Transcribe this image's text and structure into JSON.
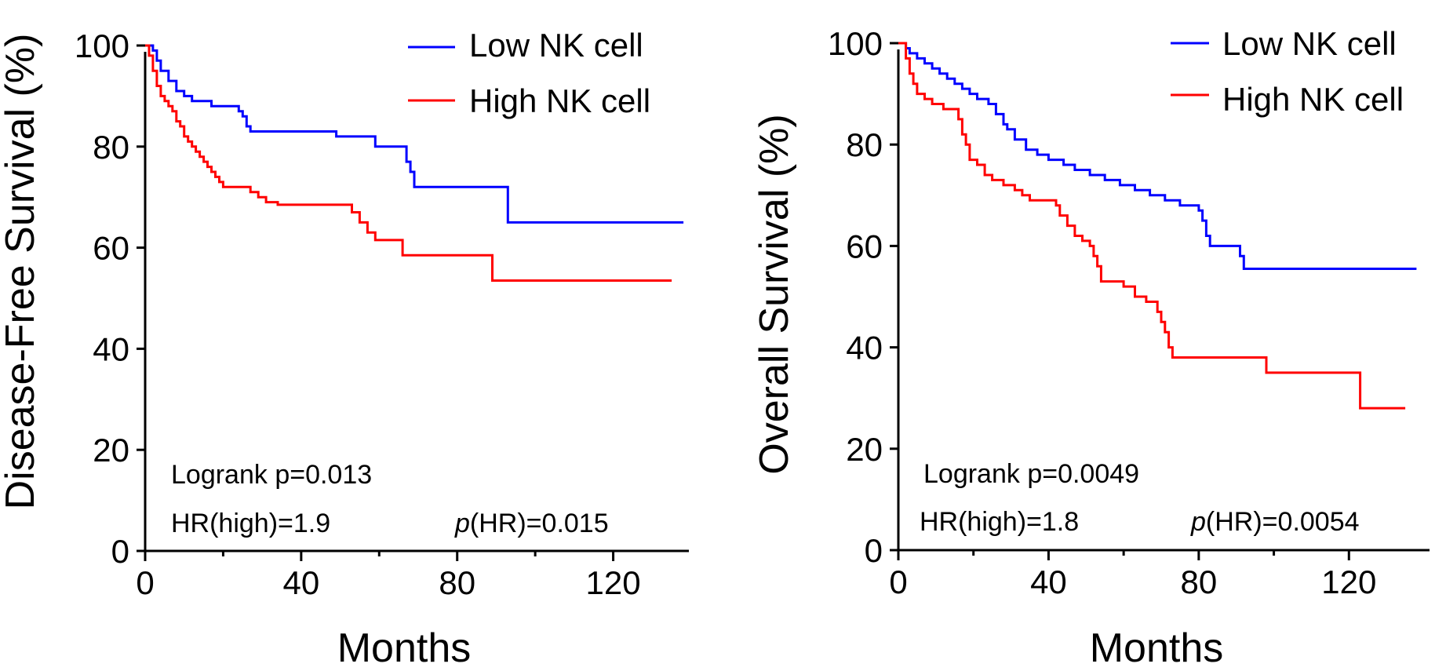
{
  "colors": {
    "low": "#0000ff",
    "high": "#ff0000",
    "axis": "#000000"
  },
  "chart_data": [
    {
      "type": "line",
      "subtype": "kaplan-meier",
      "id": "dfs",
      "xlabel": "Months",
      "ylabel": "Disease-Free Survival (%)",
      "xlim": [
        0,
        140
      ],
      "ylim": [
        0,
        100
      ],
      "xticks": [
        0,
        40,
        80,
        120
      ],
      "xticks_minor": [
        20,
        60,
        100
      ],
      "yticks": [
        0,
        20,
        40,
        60,
        80,
        100
      ],
      "legend": [
        "Low NK cell",
        "High NK cell"
      ],
      "stats": {
        "logrank": "Logrank p=0.013",
        "hr": "HR(high)=1.9",
        "p_hr_italic": "p",
        "p_hr_value": "(HR)=0.015"
      },
      "series": [
        {
          "name": "Low NK cell",
          "color": "#0000ff",
          "points": [
            [
              0,
              100
            ],
            [
              2,
              99
            ],
            [
              3,
              97
            ],
            [
              4,
              95
            ],
            [
              6,
              93
            ],
            [
              8,
              91
            ],
            [
              10,
              90
            ],
            [
              12,
              89
            ],
            [
              17,
              88
            ],
            [
              24,
              87
            ],
            [
              25,
              86
            ],
            [
              26,
              84
            ],
            [
              27,
              83
            ],
            [
              45,
              83
            ],
            [
              49,
              82
            ],
            [
              57,
              82
            ],
            [
              59,
              80
            ],
            [
              66,
              80
            ],
            [
              67,
              77
            ],
            [
              68,
              75
            ],
            [
              69,
              72
            ],
            [
              92,
              72
            ],
            [
              93,
              65
            ],
            [
              138,
              65
            ]
          ]
        },
        {
          "name": "High NK cell",
          "color": "#ff0000",
          "points": [
            [
              0,
              100
            ],
            [
              1,
              98
            ],
            [
              2,
              95
            ],
            [
              3,
              92
            ],
            [
              4,
              90
            ],
            [
              5,
              89
            ],
            [
              6,
              88
            ],
            [
              7,
              87
            ],
            [
              8,
              85
            ],
            [
              9,
              84
            ],
            [
              10,
              82
            ],
            [
              11,
              81
            ],
            [
              12,
              80
            ],
            [
              13,
              79
            ],
            [
              14,
              78
            ],
            [
              15,
              77
            ],
            [
              16,
              76
            ],
            [
              17,
              75
            ],
            [
              18,
              74
            ],
            [
              19,
              73
            ],
            [
              20,
              72
            ],
            [
              27,
              71
            ],
            [
              29,
              70
            ],
            [
              31,
              69
            ],
            [
              34,
              68.5
            ],
            [
              45,
              68.5
            ],
            [
              53,
              67
            ],
            [
              55,
              65
            ],
            [
              57,
              63
            ],
            [
              59,
              61.5
            ],
            [
              63,
              61.5
            ],
            [
              66,
              58.5
            ],
            [
              88,
              58.5
            ],
            [
              89,
              53.5
            ],
            [
              135,
              53.5
            ]
          ]
        }
      ]
    },
    {
      "type": "line",
      "subtype": "kaplan-meier",
      "id": "os",
      "xlabel": "Months",
      "ylabel": "Overall Survival (%)",
      "xlim": [
        0,
        140
      ],
      "ylim": [
        0,
        100
      ],
      "xticks": [
        0,
        40,
        80,
        120
      ],
      "xticks_minor": [
        20,
        60,
        100
      ],
      "yticks": [
        0,
        20,
        40,
        60,
        80,
        100
      ],
      "legend": [
        "Low NK cell",
        "High NK cell"
      ],
      "stats": {
        "logrank": "Logrank p=0.0049",
        "hr": "HR(high)=1.8",
        "p_hr_italic": "p",
        "p_hr_value": "(HR)=0.0054"
      },
      "series": [
        {
          "name": "Low NK cell",
          "color": "#0000ff",
          "points": [
            [
              0,
              100
            ],
            [
              2,
              99
            ],
            [
              3,
              98
            ],
            [
              5,
              97
            ],
            [
              7,
              96
            ],
            [
              9,
              95
            ],
            [
              11,
              94
            ],
            [
              13,
              93
            ],
            [
              15,
              92
            ],
            [
              17,
              91
            ],
            [
              19,
              90
            ],
            [
              21,
              89
            ],
            [
              24,
              88
            ],
            [
              26,
              86
            ],
            [
              28,
              84
            ],
            [
              29,
              83
            ],
            [
              31,
              81
            ],
            [
              34,
              79
            ],
            [
              37,
              78
            ],
            [
              40,
              77
            ],
            [
              44,
              76
            ],
            [
              47,
              75
            ],
            [
              51,
              74
            ],
            [
              55,
              73
            ],
            [
              59,
              72
            ],
            [
              63,
              71
            ],
            [
              67,
              70
            ],
            [
              71,
              69
            ],
            [
              75,
              68
            ],
            [
              80,
              67
            ],
            [
              81,
              65
            ],
            [
              82,
              62
            ],
            [
              83,
              60
            ],
            [
              91,
              58
            ],
            [
              92,
              55.5
            ],
            [
              138,
              55.5
            ]
          ]
        },
        {
          "name": "High NK cell",
          "color": "#ff0000",
          "points": [
            [
              0,
              100
            ],
            [
              2,
              97
            ],
            [
              3,
              94
            ],
            [
              4,
              92
            ],
            [
              5,
              90
            ],
            [
              7,
              89
            ],
            [
              9,
              88
            ],
            [
              12,
              87
            ],
            [
              16,
              85
            ],
            [
              17,
              82
            ],
            [
              18,
              80
            ],
            [
              19,
              77
            ],
            [
              21,
              76
            ],
            [
              23,
              74
            ],
            [
              25,
              73
            ],
            [
              28,
              72
            ],
            [
              31,
              71
            ],
            [
              33,
              70
            ],
            [
              35,
              69
            ],
            [
              42,
              68
            ],
            [
              43,
              66
            ],
            [
              45,
              64
            ],
            [
              47,
              62
            ],
            [
              49,
              61
            ],
            [
              51,
              60
            ],
            [
              52,
              58
            ],
            [
              53,
              56
            ],
            [
              54,
              53
            ],
            [
              60,
              52
            ],
            [
              63,
              50
            ],
            [
              66,
              49
            ],
            [
              69,
              47
            ],
            [
              70,
              45
            ],
            [
              71,
              43
            ],
            [
              72,
              40
            ],
            [
              73,
              38
            ],
            [
              97,
              38
            ],
            [
              98,
              35
            ],
            [
              122,
              35
            ],
            [
              123,
              28
            ],
            [
              135,
              28
            ]
          ]
        }
      ]
    }
  ]
}
